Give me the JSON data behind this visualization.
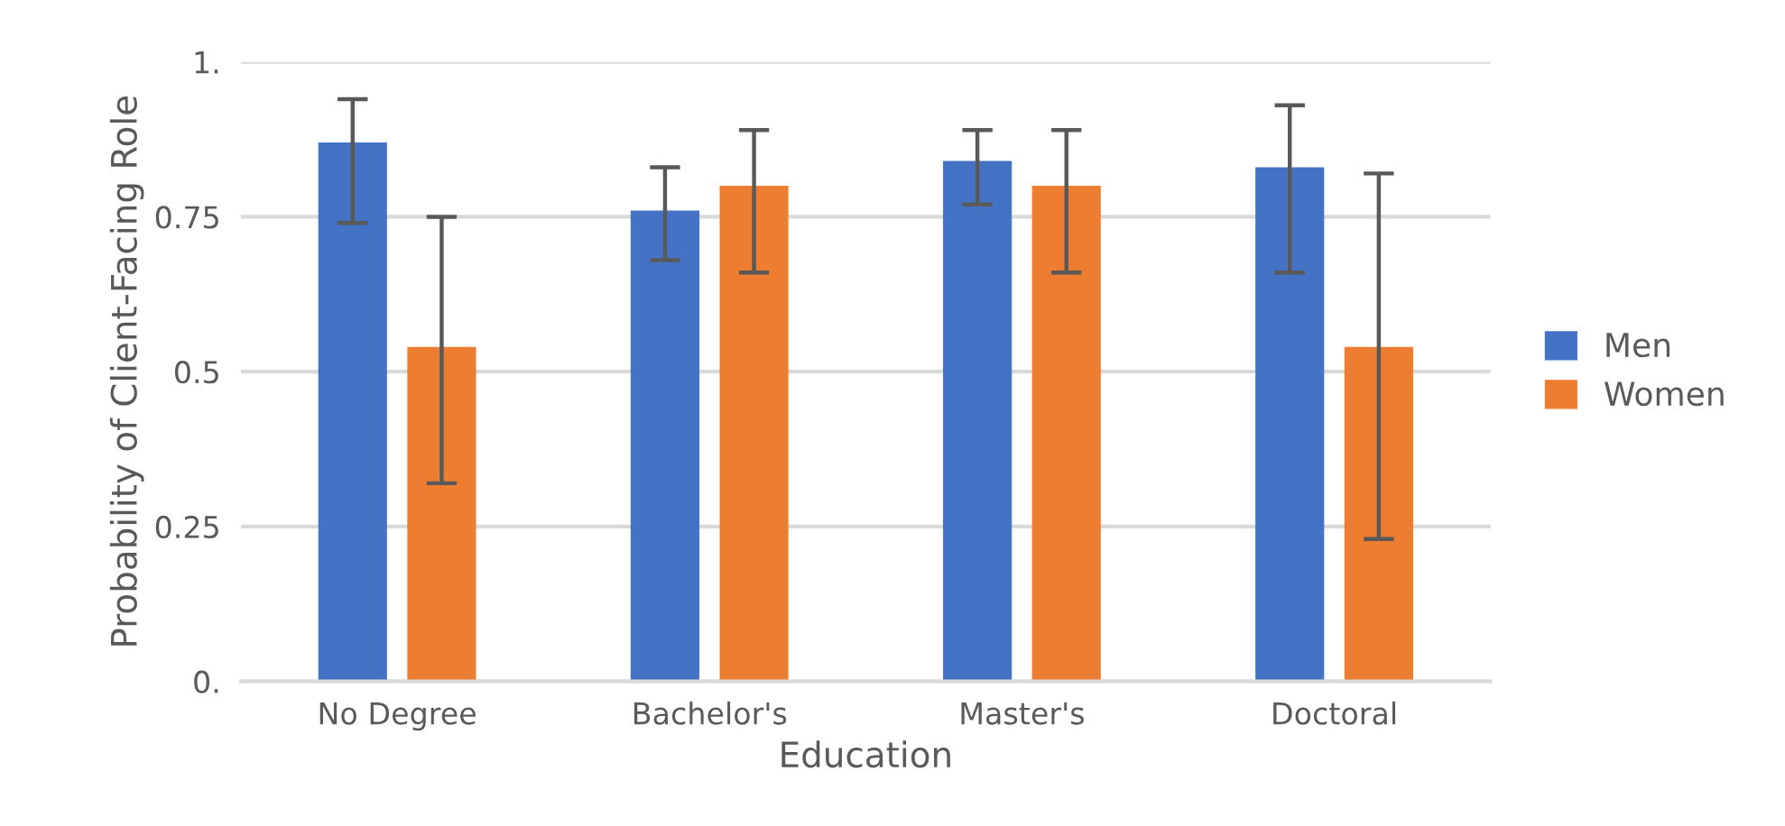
{
  "chart_data": {
    "type": "bar",
    "xlabel": "Education",
    "ylabel": "Probability of Client-Facing Role",
    "categories": [
      "No Degree",
      "Bachelor's",
      "Master's",
      "Doctoral"
    ],
    "series": [
      {
        "name": "Men",
        "color": "#4472c4",
        "values": [
          0.87,
          0.76,
          0.84,
          0.83
        ],
        "errors": [
          [
            0.74,
            0.94
          ],
          [
            0.68,
            0.83
          ],
          [
            0.77,
            0.89
          ],
          [
            0.66,
            0.93
          ]
        ]
      },
      {
        "name": "Women",
        "color": "#ed7d31",
        "values": [
          0.54,
          0.8,
          0.8,
          0.54
        ],
        "errors": [
          [
            0.32,
            0.75
          ],
          [
            0.66,
            0.89
          ],
          [
            0.66,
            0.89
          ],
          [
            0.23,
            0.82
          ]
        ]
      }
    ],
    "ylim": [
      0,
      1
    ],
    "yticks": [
      {
        "value": 0,
        "label": "0."
      },
      {
        "value": 0.25,
        "label": "0.25"
      },
      {
        "value": 0.5,
        "label": "0.5"
      },
      {
        "value": 0.75,
        "label": "0.75"
      },
      {
        "value": 1,
        "label": "1."
      }
    ],
    "grid": "y",
    "legend": "right"
  }
}
